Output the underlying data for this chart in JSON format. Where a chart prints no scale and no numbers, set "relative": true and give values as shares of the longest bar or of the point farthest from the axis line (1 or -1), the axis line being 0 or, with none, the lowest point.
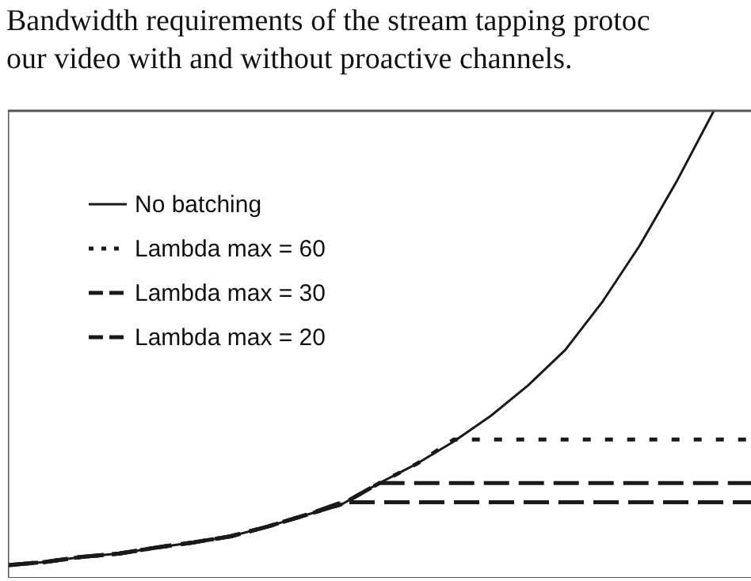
{
  "chart_data": {
    "type": "line",
    "title": "Bandwidth requirements of the stream tapping protoc\nour video with and without proactive channels.",
    "relative": true,
    "legend": "top left",
    "grid": false,
    "marker": "none",
    "categories": [
      null,
      null,
      null,
      null,
      null,
      null,
      null,
      null,
      null,
      null,
      null,
      null,
      null,
      null,
      null,
      null,
      null,
      null,
      null,
      null,
      null
    ],
    "series": [
      {
        "name": "No batching",
        "color": "#1a1a1a",
        "line_style": "solid",
        "values": [
          0.027,
          0.034,
          0.045,
          0.052,
          0.065,
          0.076,
          0.089,
          0.11,
          0.134,
          0.158,
          0.203,
          0.244,
          0.292,
          0.347,
          0.412,
          0.488,
          0.591,
          0.711,
          0.849,
          1,
          null
        ]
      },
      {
        "name": "Lambda max = 60",
        "color": "#1a1a1a",
        "line_style": "dotted",
        "values": [
          0.027,
          0.034,
          0.045,
          0.052,
          0.065,
          0.076,
          0.089,
          0.11,
          0.134,
          0.158,
          0.203,
          0.244,
          0.296,
          0.296,
          0.296,
          0.296,
          0.296,
          0.296,
          0.296,
          0.296,
          0.296
        ]
      },
      {
        "name": "Lambda max = 30",
        "color": "#1a1a1a",
        "line_style": "dashed",
        "values": [
          0.027,
          0.034,
          0.045,
          0.052,
          0.065,
          0.076,
          0.089,
          0.11,
          0.134,
          0.158,
          0.203,
          0.203,
          0.203,
          0.203,
          0.203,
          0.203,
          0.203,
          0.203,
          0.203,
          0.203,
          0.203
        ]
      },
      {
        "name": "Lambda max = 20",
        "color": "#1a1a1a",
        "line_style": "dashed",
        "values": [
          0.027,
          0.034,
          0.045,
          0.052,
          0.065,
          0.076,
          0.089,
          0.11,
          0.134,
          0.162,
          0.162,
          0.162,
          0.162,
          0.162,
          0.162,
          0.162,
          0.162,
          0.162,
          0.162,
          0.162,
          0.162
        ]
      }
    ]
  }
}
